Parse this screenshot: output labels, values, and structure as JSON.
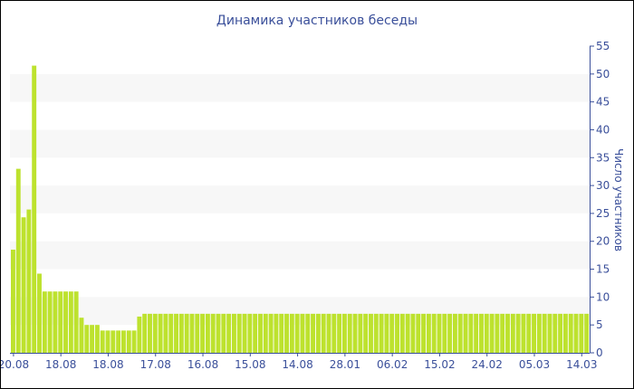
{
  "chart_data": {
    "type": "bar",
    "title": "Динамика участников беседы",
    "xlabel": "",
    "ylabel": "Число участников",
    "ylim": [
      0,
      55
    ],
    "yticks": [
      0,
      5,
      10,
      15,
      20,
      25,
      30,
      35,
      40,
      45,
      50,
      55
    ],
    "y_axis_position": "right",
    "grid": "alternating horizontal bands",
    "x_tick_labels": [
      {
        "index": 0,
        "label": "20.08"
      },
      {
        "index": 9,
        "label": "18.08"
      },
      {
        "index": 18,
        "label": "18.08"
      },
      {
        "index": 27,
        "label": "17.08"
      },
      {
        "index": 36,
        "label": "16.08"
      },
      {
        "index": 45,
        "label": "15.08"
      },
      {
        "index": 54,
        "label": "14.08"
      },
      {
        "index": 63,
        "label": "28.01"
      },
      {
        "index": 72,
        "label": "06.02"
      },
      {
        "index": 81,
        "label": "15.02"
      },
      {
        "index": 90,
        "label": "24.02"
      },
      {
        "index": 99,
        "label": "05.03"
      },
      {
        "index": 108,
        "label": "14.03"
      }
    ],
    "values": [
      18.5,
      33,
      24.3,
      25.7,
      51.5,
      14.2,
      11,
      11,
      11,
      11,
      11,
      11,
      11,
      6.3,
      5,
      5,
      5,
      4,
      4,
      4,
      4,
      4,
      4,
      4,
      6.5,
      7,
      7,
      7,
      7,
      7,
      7,
      7,
      7,
      7,
      7,
      7,
      7,
      7,
      7,
      7,
      7,
      7,
      7,
      7,
      7,
      7,
      7,
      7,
      7,
      7,
      7,
      7,
      7,
      7,
      7,
      7,
      7,
      7,
      7,
      7,
      7,
      7,
      7,
      7,
      7,
      7,
      7,
      7,
      7,
      7,
      7,
      7,
      7,
      7,
      7,
      7,
      7,
      7,
      7,
      7,
      7,
      7,
      7,
      7,
      7,
      7,
      7,
      7,
      7,
      7,
      7,
      7,
      7,
      7,
      7,
      7,
      7,
      7,
      7,
      7,
      7,
      7,
      7,
      7,
      7,
      7,
      7,
      7,
      7,
      7
    ],
    "colors": {
      "bar": "#bde22e",
      "axis": "#3a4f9a",
      "band": "#f7f7f7"
    }
  }
}
